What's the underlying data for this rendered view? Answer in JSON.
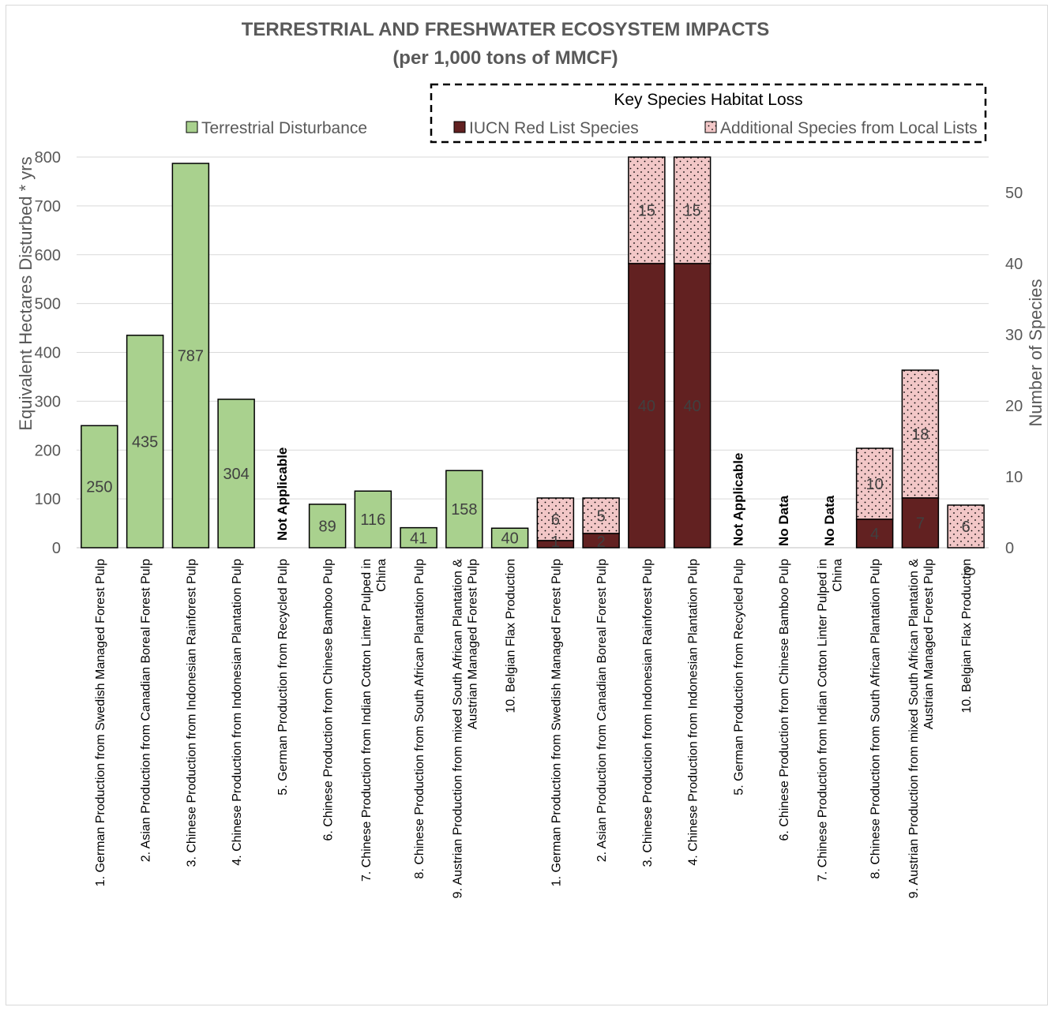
{
  "chart_data": {
    "type": "bar",
    "title": "TERRESTRIAL AND FRESHWATER ECOSYSTEM IMPACTS",
    "subtitle": "(per 1,000 tons of MMCF)",
    "ylabel_left": "Equivalent Hectares Disturbed * yrs",
    "ylabel_right": "Number of Species",
    "ylim_left": [
      0,
      800
    ],
    "yticks_left": [
      "0",
      "100",
      "200",
      "300",
      "400",
      "500",
      "600",
      "700",
      "800"
    ],
    "ylim_right": [
      0,
      55
    ],
    "yticks_right": [
      "0",
      "10",
      "20",
      "30",
      "40",
      "50"
    ],
    "legend": {
      "terrestrial": "Terrestrial Disturbance",
      "group_title": "Key Species Habitat Loss",
      "iucn": "IUCN Red List Species",
      "local": "Additional Species from Local Lists"
    },
    "colors": {
      "terrestrial": "#a9d18e",
      "iucn": "#622121",
      "local": "#f2c7c7",
      "dots": "#000000"
    },
    "terrestrial": {
      "categories": [
        "1. German Production from Swedish Managed Forest Pulp",
        "2. Asian Production from Canadian Boreal Forest Pulp",
        "3. Chinese Production from Indonesian Rainforest Pulp",
        "4. Chinese Production from Indonesian Plantation Pulp",
        "5. German Production from Recycled Pulp",
        "6. Chinese Production from Chinese Bamboo Pulp",
        "7. Chinese Production from Indian Cotton Linter Pulped in China",
        "8. Chinese Production from South African Plantation Pulp",
        "9. Austrian Production from mixed South African Plantation & Austrian Managed Forest Pulp",
        "10. Belgian Flax Production"
      ],
      "values": [
        250,
        435,
        787,
        304,
        null,
        89,
        116,
        41,
        158,
        40
      ],
      "labels": [
        "250",
        "435",
        "787",
        "304",
        "",
        "89",
        "116",
        "41",
        "158",
        "40"
      ],
      "notes": [
        "",
        "",
        "",
        "",
        "Not Applicable",
        "",
        "",
        "",
        "",
        ""
      ]
    },
    "species": {
      "categories": [
        "1. German Production from Swedish Managed Forest Pulp",
        "2. Asian Production from Canadian Boreal Forest Pulp",
        "3. Chinese Production from Indonesian Rainforest Pulp",
        "4. Chinese Production from Indonesian Plantation Pulp",
        "5. German Production from Recycled Pulp",
        "6. Chinese Production from Chinese Bamboo Pulp",
        "7. Chinese Production from Indian Cotton Linter Pulped in China",
        "8. Chinese Production from South African Plantation Pulp",
        "9. Austrian Production from mixed South African Plantation & Austrian Managed Forest Pulp",
        "10. Belgian Flax Production"
      ],
      "iucn": [
        1,
        2,
        40,
        40,
        null,
        null,
        null,
        4,
        7,
        0
      ],
      "iucn_labels": [
        "1",
        "2",
        "40",
        "40",
        "",
        "",
        "",
        "4",
        "7",
        "0"
      ],
      "local": [
        6,
        5,
        15,
        15,
        null,
        null,
        null,
        10,
        18,
        6
      ],
      "local_labels": [
        "6",
        "5",
        "15",
        "15",
        "",
        "",
        "",
        "10",
        "18",
        "6"
      ],
      "notes": [
        "",
        "",
        "",
        "",
        "Not Applicable",
        "No Data",
        "No Data",
        "",
        "",
        ""
      ]
    },
    "grid": true
  }
}
